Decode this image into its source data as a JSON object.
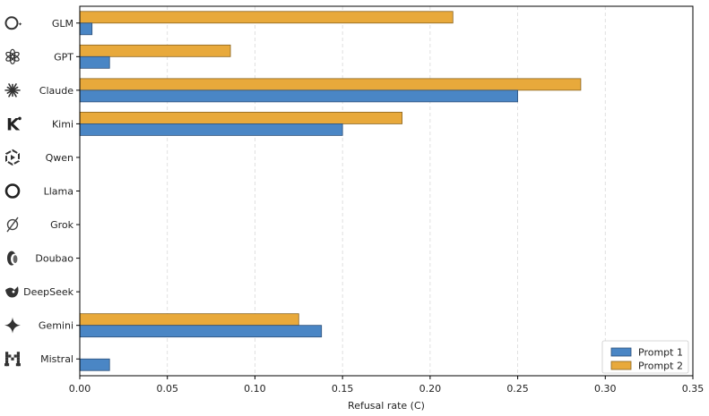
{
  "chart_data": {
    "type": "bar",
    "orientation": "horizontal",
    "categories": [
      "GLM",
      "GPT",
      "Claude",
      "Kimi",
      "Qwen",
      "Llama",
      "Grok",
      "Doubao",
      "DeepSeek",
      "Gemini",
      "Mistral"
    ],
    "category_icons": [
      "glm-icon",
      "gpt-icon",
      "claude-icon",
      "kimi-icon",
      "qwen-icon",
      "llama-icon",
      "grok-icon",
      "doubao-icon",
      "deepseek-icon",
      "gemini-icon",
      "mistral-icon"
    ],
    "series": [
      {
        "name": "Prompt 1",
        "color": "#4a86c5",
        "values": [
          0.007,
          0.017,
          0.25,
          0.15,
          0,
          0,
          0,
          0,
          0,
          0.138,
          0.017
        ]
      },
      {
        "name": "Prompt 2",
        "color": "#e8a93b",
        "values": [
          0.213,
          0.086,
          0.286,
          0.184,
          0,
          0,
          0,
          0,
          0,
          0.125,
          0
        ]
      }
    ],
    "xlabel": "Refusal rate (C)",
    "xlim": [
      0,
      0.35
    ],
    "xticks": [
      "0.00",
      "0.05",
      "0.10",
      "0.15",
      "0.20",
      "0.25",
      "0.30",
      "0.35"
    ],
    "grid": "vertical dashed",
    "legend_position": "bottom-right"
  }
}
